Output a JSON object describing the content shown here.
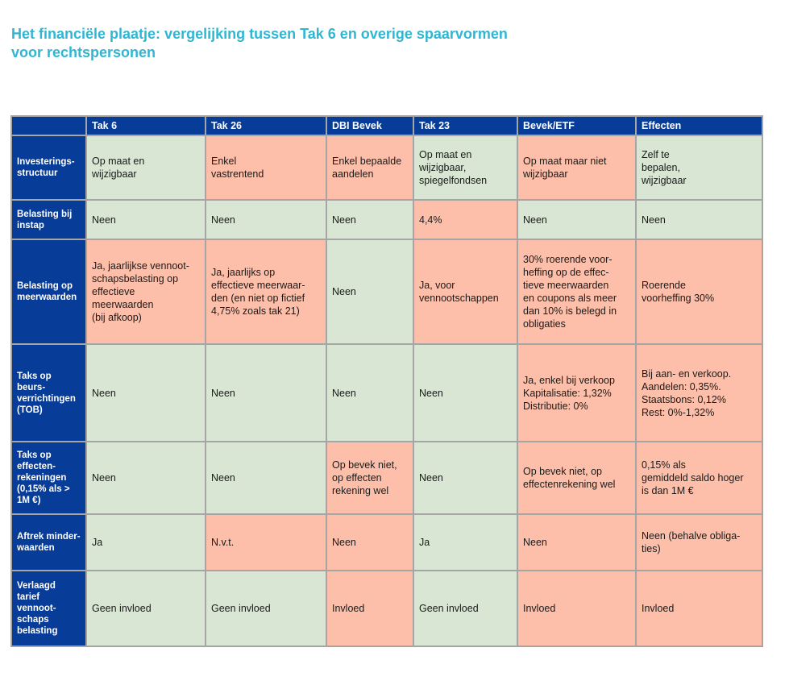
{
  "title": "Het financiële plaatje: vergelijking tussen Tak 6 en overige spaarvormen\nvoor rechtspersonen",
  "colors": {
    "title": "#2fb6d3",
    "header": "#073c99",
    "green": "#d8e6d3",
    "salmon": "#fdbfa9",
    "border": "#a5a5a5"
  },
  "table": {
    "columns": [
      "",
      "Tak 6",
      "Tak 26",
      "DBI Bevek",
      "Tak 23",
      "Bevek/ETF",
      "Effecten"
    ],
    "rows": [
      {
        "label": "Investerings-\nstructuur",
        "cells": [
          {
            "text": "Op maat en\nwijzigbaar",
            "tone": "green"
          },
          {
            "text": "Enkel\nvastrentend",
            "tone": "salmon"
          },
          {
            "text": "Enkel bepaalde\naandelen",
            "tone": "salmon"
          },
          {
            "text": "Op maat en\nwijzigbaar,\nspiegelfondsen",
            "tone": "green"
          },
          {
            "text": "Op maat maar niet\nwijzigbaar",
            "tone": "salmon"
          },
          {
            "text": "Zelf te\nbepalen,\nwijzigbaar",
            "tone": "green"
          }
        ]
      },
      {
        "label": "Belasting bij\ninstap",
        "cells": [
          {
            "text": "Neen",
            "tone": "green"
          },
          {
            "text": "Neen",
            "tone": "green"
          },
          {
            "text": "Neen",
            "tone": "green"
          },
          {
            "text": "4,4%",
            "tone": "salmon"
          },
          {
            "text": "Neen",
            "tone": "green"
          },
          {
            "text": "Neen",
            "tone": "green"
          }
        ]
      },
      {
        "label": "Belasting op\nmeerwaarden",
        "cells": [
          {
            "text": "Ja, jaarlijkse vennoot-\nschapsbelasting op\neffectieve\nmeerwaarden\n(bij afkoop)",
            "tone": "salmon"
          },
          {
            "text": "Ja, jaarlijks op\neffectieve meerwaar-\nden (en niet op fictief\n4,75% zoals tak 21)",
            "tone": "salmon"
          },
          {
            "text": "Neen",
            "tone": "green"
          },
          {
            "text": "Ja, voor\nvennootschappen",
            "tone": "salmon"
          },
          {
            "text": "30% roerende voor-\nheffing op de effec-\ntieve meerwaarden\nen coupons als meer\ndan 10% is belegd in\nobligaties",
            "tone": "salmon"
          },
          {
            "text": "Roerende\nvoorheffing 30%",
            "tone": "salmon"
          }
        ]
      },
      {
        "label": "Taks op\n beurs-\nverrichtingen\n(TOB)",
        "cells": [
          {
            "text": "Neen",
            "tone": "green"
          },
          {
            "text": "Neen",
            "tone": "green"
          },
          {
            "text": "Neen",
            "tone": "green"
          },
          {
            "text": "Neen",
            "tone": "green"
          },
          {
            "text": "Ja, enkel bij verkoop\nKapitalisatie: 1,32%\nDistributie: 0%",
            "tone": "salmon"
          },
          {
            "text": "Bij aan- en verkoop.\nAandelen: 0,35%.\nStaatsbons: 0,12%\nRest: 0%-1,32%",
            "tone": "salmon"
          }
        ]
      },
      {
        "label": "Taks op\neffecten-\nrekeningen\n(0,15% als >\n1M €)",
        "cells": [
          {
            "text": "Neen",
            "tone": "green"
          },
          {
            "text": "Neen",
            "tone": "green"
          },
          {
            "text": "Op bevek niet,\nop effecten\nrekening wel",
            "tone": "salmon"
          },
          {
            "text": "Neen",
            "tone": "green"
          },
          {
            "text": "Op bevek niet, op\neffectenrekening wel",
            "tone": "salmon"
          },
          {
            "text": "0,15% als\ngemiddeld saldo hoger\nis dan 1M €",
            "tone": "salmon"
          }
        ]
      },
      {
        "label": "Aftrek minder-\nwaarden",
        "cells": [
          {
            "text": "Ja",
            "tone": "green"
          },
          {
            "text": "N.v.t.",
            "tone": "salmon"
          },
          {
            "text": "Neen",
            "tone": "salmon"
          },
          {
            "text": "Ja",
            "tone": "green"
          },
          {
            "text": "Neen",
            "tone": "salmon"
          },
          {
            "text": "Neen (behalve obliga-\nties)",
            "tone": "salmon"
          }
        ]
      },
      {
        "label": "Verlaagd tarief\nvennoot-\nschaps\nbelasting",
        "cells": [
          {
            "text": "Geen invloed",
            "tone": "green"
          },
          {
            "text": "Geen invloed",
            "tone": "green"
          },
          {
            "text": "Invloed",
            "tone": "salmon"
          },
          {
            "text": "Geen invloed",
            "tone": "green"
          },
          {
            "text": "Invloed",
            "tone": "salmon"
          },
          {
            "text": "Invloed",
            "tone": "salmon"
          }
        ]
      }
    ]
  }
}
